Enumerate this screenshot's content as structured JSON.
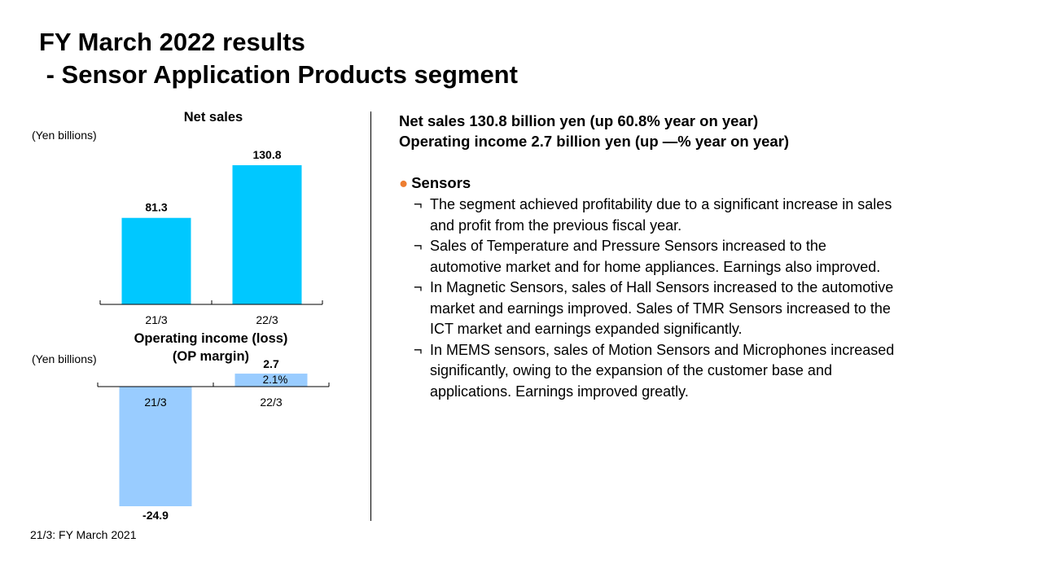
{
  "title": {
    "line1": "FY March 2022 results",
    "line2": " - Sensor Application Products segment"
  },
  "chart_data": [
    {
      "type": "bar",
      "title": "Net sales",
      "unit_label": "(Yen billions)",
      "categories": [
        "21/3",
        "22/3"
      ],
      "values": [
        81.3,
        130.8
      ],
      "data_labels": [
        "81.3",
        "130.8"
      ],
      "colors": [
        "#00c8ff"
      ]
    },
    {
      "type": "bar",
      "title": "Operating income (loss)",
      "subtitle": "(OP margin)",
      "unit_label": "(Yen billions)",
      "categories": [
        "21/3",
        "22/3"
      ],
      "values": [
        -24.9,
        2.7
      ],
      "data_labels": [
        "-24.9",
        "2.7"
      ],
      "margin_labels": [
        "",
        "2.1%"
      ],
      "colors": [
        "#99ccff"
      ]
    }
  ],
  "summary": {
    "line1": "Net sales 130.8 billion yen (up 60.8% year on year)",
    "line2": "Operating income 2.7 billion yen (up —% year on year)"
  },
  "section": {
    "bullet": "●",
    "bullet_color": "#ed7d31",
    "heading": "Sensors",
    "item_marker": "¬",
    "items": [
      {
        "lines": [
          "The segment achieved profitability due to a significant increase in sales",
          "and profit from the previous fiscal year."
        ]
      },
      {
        "lines": [
          "Sales of Temperature and Pressure Sensors increased to the",
          "automotive market and for home appliances. Earnings also improved."
        ]
      },
      {
        "lines": [
          "In Magnetic Sensors, sales of Hall Sensors increased to the automotive",
          "market and earnings improved. Sales of TMR Sensors increased to the",
          "ICT market and earnings expanded significantly."
        ]
      },
      {
        "lines": [
          "In MEMS sensors, sales of Motion Sensors and Microphones increased",
          "significantly, owing to the expansion of the customer base and",
          "applications. Earnings improved greatly."
        ]
      }
    ]
  },
  "footnote": "21/3: FY March 2021"
}
